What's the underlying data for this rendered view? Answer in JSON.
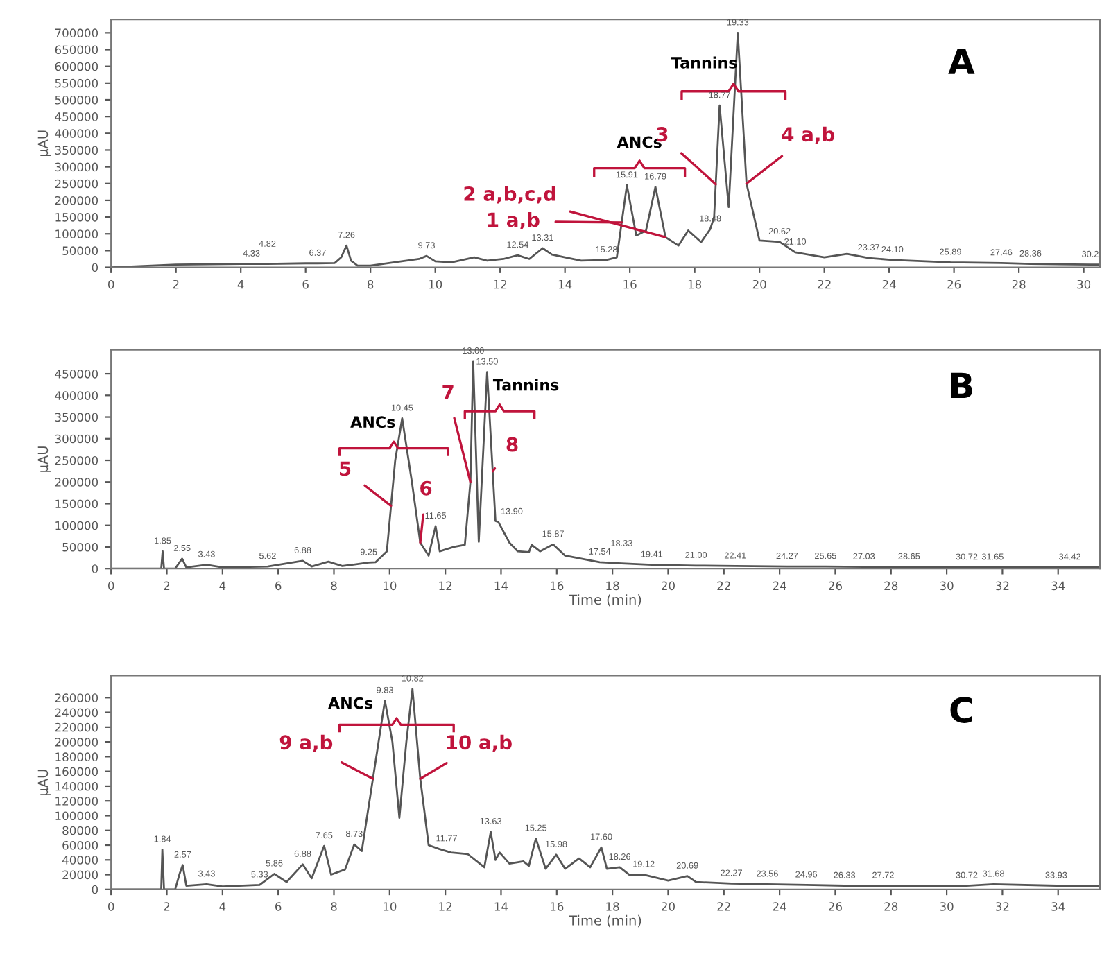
{
  "chart_data": [
    {
      "type": "line",
      "title": "A",
      "ylabel": "μAU",
      "xlim": [
        0,
        30.5
      ],
      "ylim": [
        0,
        740000
      ],
      "xticks": [
        0,
        2,
        4,
        6,
        8,
        10,
        12,
        14,
        16,
        18,
        20,
        22,
        24,
        26,
        28,
        30
      ],
      "yticks": [
        0,
        50000,
        100000,
        150000,
        200000,
        250000,
        300000,
        350000,
        400000,
        450000,
        500000,
        550000,
        600000,
        650000,
        700000
      ],
      "grid": false,
      "legend": false,
      "marker": "none",
      "line_style": "solid",
      "series": [
        {
          "color": "#555555",
          "x": [
            0,
            2,
            4,
            4.33,
            4.82,
            6,
            6.37,
            6.9,
            7.1,
            7.26,
            7.4,
            7.6,
            8,
            8.5,
            9.5,
            9.73,
            10,
            10.5,
            11.2,
            11.6,
            12.1,
            12.54,
            12.9,
            13.31,
            13.6,
            14,
            14.5,
            15.28,
            15.6,
            15.91,
            16.2,
            16.5,
            16.79,
            17.1,
            17.5,
            17.8,
            18.2,
            18.48,
            18.6,
            18.77,
            19.05,
            19.33,
            19.6,
            20,
            20.62,
            21.1,
            22,
            22.7,
            23.37,
            24.1,
            25.89,
            27.46,
            28.36,
            30.2,
            30.5
          ],
          "values": [
            0,
            8000,
            10000,
            10000,
            10000,
            12000,
            12000,
            13000,
            30000,
            65000,
            20000,
            5000,
            5000,
            12000,
            25000,
            34000,
            18000,
            15000,
            30000,
            20000,
            25000,
            36000,
            25000,
            57000,
            38000,
            30000,
            20000,
            22000,
            30000,
            245000,
            95000,
            110000,
            240000,
            90000,
            65000,
            110000,
            75000,
            114000,
            150000,
            483000,
            180000,
            700000,
            250000,
            80000,
            76000,
            45000,
            30000,
            40000,
            28000,
            22000,
            15000,
            13000,
            10000,
            8000,
            8000
          ]
        }
      ],
      "annotations": [
        "ANCs",
        "Tannins",
        {
          "text": "1 a,b",
          "x": 15.75,
          "y": 134000
        },
        {
          "text": "2 a,b,c,d",
          "x": 17.1,
          "y": 90000
        },
        {
          "text": "3",
          "x": 18.65,
          "y": 248000
        },
        {
          "text": "4 a,b",
          "x": 19.6,
          "y": 250000
        },
        {
          "text": "4.33",
          "x": 4.33,
          "y": 10000
        },
        {
          "text": "4.82",
          "x": 4.82,
          "y": 10000
        },
        {
          "text": "6.37",
          "x": 6.37,
          "y": 12000
        },
        {
          "text": "7.26",
          "x": 7.26,
          "y": 65000
        },
        {
          "text": "9.73",
          "x": 9.73,
          "y": 34000
        },
        {
          "text": "12.54",
          "x": 12.54,
          "y": 36000
        },
        {
          "text": "13.31",
          "x": 13.31,
          "y": 57000
        },
        {
          "text": "15.28",
          "x": 15.28,
          "y": 22000
        },
        {
          "text": "15.91",
          "x": 15.91,
          "y": 245000
        },
        {
          "text": "16.79",
          "x": 16.79,
          "y": 240000
        },
        {
          "text": "18.48",
          "x": 18.48,
          "y": 114000
        },
        {
          "text": "18.77",
          "x": 18.77,
          "y": 483000
        },
        {
          "text": "19.33",
          "x": 19.33,
          "y": 700000
        },
        {
          "text": "20.62",
          "x": 20.62,
          "y": 76000
        },
        {
          "text": "21.10",
          "x": 21.1,
          "y": 45000
        },
        {
          "text": "23.37",
          "x": 23.37,
          "y": 28000
        },
        {
          "text": "24.10",
          "x": 24.1,
          "y": 22000
        },
        {
          "text": "25.89",
          "x": 25.89,
          "y": 15000
        },
        {
          "text": "27.46",
          "x": 27.46,
          "y": 13000
        },
        {
          "text": "28.36",
          "x": 28.36,
          "y": 10000
        },
        {
          "text": "30.2",
          "x": 30.2,
          "y": 8000
        }
      ]
    },
    {
      "type": "line",
      "title": "B",
      "ylabel": "μAU",
      "xlabel": "Time (min)",
      "xlim": [
        0,
        35.5
      ],
      "ylim": [
        0,
        505000
      ],
      "xticks": [
        0,
        2,
        4,
        6,
        8,
        10,
        12,
        14,
        16,
        18,
        20,
        22,
        24,
        26,
        28,
        30,
        32,
        34
      ],
      "yticks": [
        0,
        50000,
        100000,
        150000,
        200000,
        250000,
        300000,
        350000,
        400000,
        450000
      ],
      "grid": false,
      "legend": false,
      "marker": "none",
      "line_style": "solid",
      "series": [
        {
          "color": "#555555",
          "x": [
            0,
            1.8,
            1.85,
            1.9,
            2.3,
            2.55,
            2.7,
            3.43,
            4,
            5.62,
            6.88,
            7.2,
            7.8,
            8.3,
            9.25,
            9.5,
            9.9,
            10.2,
            10.45,
            10.8,
            11.1,
            11.4,
            11.65,
            11.8,
            12.3,
            12.7,
            12.9,
            13.0,
            13.2,
            13.5,
            13.8,
            13.9,
            14.3,
            14.6,
            15,
            15.1,
            15.4,
            15.87,
            16.3,
            17.54,
            18.33,
            19.41,
            21,
            22.41,
            24.27,
            25.65,
            27.03,
            28.65,
            30.72,
            31.65,
            34.42,
            35.5
          ],
          "values": [
            0,
            0,
            40000,
            0,
            0,
            23000,
            3000,
            9000,
            3000,
            5000,
            18000,
            5000,
            16000,
            6000,
            14000,
            15000,
            40000,
            250000,
            347000,
            200000,
            60000,
            30000,
            98000,
            40000,
            50000,
            55000,
            200000,
            479000,
            62000,
            454000,
            110000,
            108000,
            60000,
            40000,
            38000,
            55000,
            40000,
            56000,
            30000,
            15000,
            12000,
            9000,
            7000,
            6000,
            5000,
            5000,
            4000,
            4000,
            3000,
            3000,
            3000,
            3000
          ]
        }
      ],
      "annotations": [
        "ANCs",
        "Tannins",
        {
          "text": "5",
          "x": 10.05,
          "y": 145000
        },
        {
          "text": "6",
          "x": 11.1,
          "y": 60000
        },
        {
          "text": "7",
          "x": 12.9,
          "y": 200000
        },
        {
          "text": "8",
          "x": 13.7,
          "y": 225000
        },
        {
          "text": "1.85",
          "x": 1.85,
          "y": 40000
        },
        {
          "text": "2.55",
          "x": 2.55,
          "y": 23000
        },
        {
          "text": "3.43",
          "x": 3.43,
          "y": 9000
        },
        {
          "text": "5.62",
          "x": 5.62,
          "y": 5000
        },
        {
          "text": "6.88",
          "x": 6.88,
          "y": 18000
        },
        {
          "text": "9.25",
          "x": 9.25,
          "y": 14000
        },
        {
          "text": "10.45",
          "x": 10.45,
          "y": 347000
        },
        {
          "text": "11.65",
          "x": 11.65,
          "y": 98000
        },
        {
          "text": "13.00",
          "x": 13.0,
          "y": 479000
        },
        {
          "text": "13.50",
          "x": 13.5,
          "y": 454000
        },
        {
          "text": "13.90",
          "x": 13.9,
          "y": 108000
        },
        {
          "text": "15.87",
          "x": 15.87,
          "y": 56000
        },
        {
          "text": "17.54",
          "x": 17.54,
          "y": 15000
        },
        {
          "text": "18.33",
          "x": 18.33,
          "y": 12000
        },
        {
          "text": "19.41",
          "x": 19.41,
          "y": 9000
        },
        {
          "text": "21.00",
          "x": 21.0,
          "y": 7000
        },
        {
          "text": "22.41",
          "x": 22.41,
          "y": 6000
        },
        {
          "text": "24.27",
          "x": 24.27,
          "y": 5000
        },
        {
          "text": "25.65",
          "x": 25.65,
          "y": 5000
        },
        {
          "text": "27.03",
          "x": 27.03,
          "y": 4000
        },
        {
          "text": "28.65",
          "x": 28.65,
          "y": 4000
        },
        {
          "text": "30.72",
          "x": 30.72,
          "y": 3000
        },
        {
          "text": "31.65",
          "x": 31.65,
          "y": 3000
        },
        {
          "text": "34.42",
          "x": 34.42,
          "y": 3000
        }
      ]
    },
    {
      "type": "line",
      "title": "C",
      "ylabel": "μAU",
      "xlabel": "Time (min)",
      "xlim": [
        0,
        35.5
      ],
      "ylim": [
        0,
        290000
      ],
      "xticks": [
        0,
        2,
        4,
        6,
        8,
        10,
        12,
        14,
        16,
        18,
        20,
        22,
        24,
        26,
        28,
        30,
        32,
        34
      ],
      "yticks": [
        0,
        20000,
        40000,
        60000,
        80000,
        100000,
        120000,
        140000,
        160000,
        180000,
        200000,
        220000,
        240000,
        260000
      ],
      "grid": false,
      "legend": false,
      "marker": "none",
      "line_style": "solid",
      "series": [
        {
          "color": "#555555",
          "x": [
            0,
            1.8,
            1.84,
            1.9,
            2.3,
            2.45,
            2.57,
            2.7,
            3.43,
            4,
            5.33,
            5.86,
            6.3,
            6.88,
            7.2,
            7.65,
            7.9,
            8.4,
            8.73,
            9,
            9.4,
            9.83,
            10.1,
            10.35,
            10.6,
            10.82,
            11.1,
            11.4,
            11.77,
            12.2,
            12.8,
            13.4,
            13.63,
            13.8,
            13.95,
            14.3,
            14.8,
            15.0,
            15.25,
            15.6,
            15.98,
            16.3,
            16.8,
            17.2,
            17.6,
            17.8,
            18.26,
            18.6,
            19.12,
            20.0,
            20.69,
            21,
            22.27,
            23.56,
            24.96,
            26.33,
            27.72,
            30.72,
            31.68,
            33.93,
            35.5
          ],
          "values": [
            0,
            0,
            54000,
            0,
            0,
            20000,
            33000,
            5000,
            7000,
            4000,
            6000,
            21000,
            10000,
            34000,
            15000,
            59000,
            20000,
            27000,
            61000,
            52000,
            150000,
            256000,
            200000,
            97000,
            200000,
            272000,
            150000,
            60000,
            55000,
            50000,
            48000,
            30000,
            78000,
            40000,
            50000,
            35000,
            38000,
            32000,
            69000,
            28000,
            47000,
            28000,
            42000,
            30000,
            57000,
            28000,
            30000,
            20000,
            20000,
            12000,
            18000,
            10000,
            8000,
            7000,
            6000,
            5000,
            5000,
            5000,
            7000,
            5000,
            5000
          ]
        }
      ],
      "annotations": [
        "ANCs",
        {
          "text": "9 a,b",
          "x": 9.4,
          "y": 150000
        },
        {
          "text": "10 a,b",
          "x": 11.1,
          "y": 150000
        },
        {
          "text": "1.84",
          "x": 1.84,
          "y": 54000
        },
        {
          "text": "2.57",
          "x": 2.57,
          "y": 33000
        },
        {
          "text": "3.43",
          "x": 3.43,
          "y": 7000
        },
        {
          "text": "5.33",
          "x": 5.33,
          "y": 6000
        },
        {
          "text": "5.86",
          "x": 5.86,
          "y": 21000
        },
        {
          "text": "6.88",
          "x": 6.88,
          "y": 34000
        },
        {
          "text": "7.65",
          "x": 7.65,
          "y": 59000
        },
        {
          "text": "8.73",
          "x": 8.73,
          "y": 61000
        },
        {
          "text": "9.83",
          "x": 9.83,
          "y": 256000
        },
        {
          "text": "10.82",
          "x": 10.82,
          "y": 272000
        },
        {
          "text": "11.77",
          "x": 11.77,
          "y": 55000
        },
        {
          "text": "13.63",
          "x": 13.63,
          "y": 78000
        },
        {
          "text": "15.25",
          "x": 15.25,
          "y": 69000
        },
        {
          "text": "15.98",
          "x": 15.98,
          "y": 47000
        },
        {
          "text": "17.60",
          "x": 17.6,
          "y": 57000
        },
        {
          "text": "18.26",
          "x": 18.26,
          "y": 30000
        },
        {
          "text": "19.12",
          "x": 19.12,
          "y": 20000
        },
        {
          "text": "20.69",
          "x": 20.69,
          "y": 18000
        },
        {
          "text": "22.27",
          "x": 22.27,
          "y": 8000
        },
        {
          "text": "23.56",
          "x": 23.56,
          "y": 7000
        },
        {
          "text": "24.96",
          "x": 24.96,
          "y": 6000
        },
        {
          "text": "26.33",
          "x": 26.33,
          "y": 5000
        },
        {
          "text": "27.72",
          "x": 27.72,
          "y": 5000
        },
        {
          "text": "30.72",
          "x": 30.72,
          "y": 5000
        },
        {
          "text": "31.68",
          "x": 31.68,
          "y": 7000
        },
        {
          "text": "33.93",
          "x": 33.93,
          "y": 5000
        }
      ]
    }
  ]
}
